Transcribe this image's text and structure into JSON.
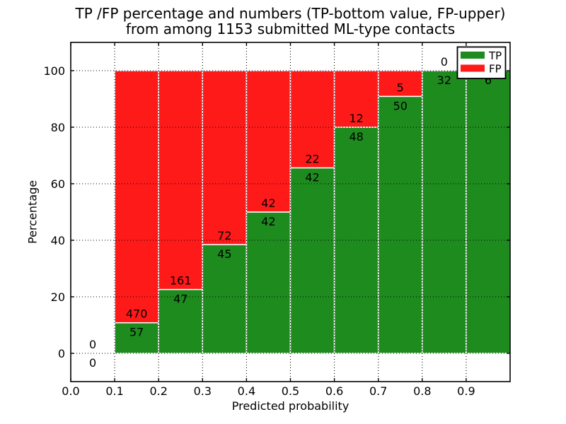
{
  "chart_data": {
    "type": "bar",
    "stacked": true,
    "title_line1": "TP /FP percentage and numbers (TP-bottom value, FP-upper)",
    "title_line2": "from among 1153 submitted ML-type contacts",
    "xlabel": "Predicted probability",
    "ylabel": "Percentage",
    "total_contacts": 1153,
    "xlim": [
      0.0,
      1.0
    ],
    "ylim": [
      -10,
      110
    ],
    "grid": "dotted",
    "x_tick_labels": [
      "0.0",
      "0.1",
      "0.2",
      "0.3",
      "0.4",
      "0.5",
      "0.6",
      "0.7",
      "0.8",
      "0.9"
    ],
    "y_ticks": [
      0,
      20,
      40,
      60,
      80,
      100
    ],
    "colors": {
      "tp": "#1e8b1e",
      "fp": "#ff1a1a",
      "grid": "#000000",
      "spine": "#000000",
      "background": "#ffffff"
    },
    "legend": {
      "position": "upper right",
      "entries": [
        {
          "label": "TP",
          "color_key": "tp"
        },
        {
          "label": "FP",
          "color_key": "fp"
        }
      ]
    },
    "categories": [
      "0.0-0.1",
      "0.1-0.2",
      "0.2-0.3",
      "0.3-0.4",
      "0.4-0.5",
      "0.5-0.6",
      "0.6-0.7",
      "0.7-0.8",
      "0.8-0.9",
      "0.9-1.0"
    ],
    "series": [
      {
        "name": "TP",
        "values": [
          0,
          57,
          47,
          45,
          42,
          42,
          48,
          50,
          32,
          6
        ]
      },
      {
        "name": "FP",
        "values": [
          0,
          470,
          161,
          72,
          42,
          22,
          12,
          5,
          0,
          0
        ]
      }
    ],
    "tp_percentages": [
      0,
      10.8,
      22.6,
      38.5,
      50.0,
      65.6,
      80.0,
      90.9,
      100.0,
      100.0
    ],
    "bins": [
      {
        "range": [
          0.0,
          0.1
        ],
        "tp": 0,
        "fp": 0
      },
      {
        "range": [
          0.1,
          0.2
        ],
        "tp": 57,
        "fp": 470
      },
      {
        "range": [
          0.2,
          0.3
        ],
        "tp": 47,
        "fp": 161
      },
      {
        "range": [
          0.3,
          0.4
        ],
        "tp": 45,
        "fp": 72
      },
      {
        "range": [
          0.4,
          0.5
        ],
        "tp": 42,
        "fp": 42
      },
      {
        "range": [
          0.5,
          0.6
        ],
        "tp": 42,
        "fp": 22
      },
      {
        "range": [
          0.6,
          0.7
        ],
        "tp": 48,
        "fp": 12
      },
      {
        "range": [
          0.7,
          0.8
        ],
        "tp": 50,
        "fp": 5
      },
      {
        "range": [
          0.8,
          0.9
        ],
        "tp": 32,
        "fp": 0
      },
      {
        "range": [
          0.9,
          1.0
        ],
        "tp": 6,
        "fp": 0
      }
    ]
  }
}
